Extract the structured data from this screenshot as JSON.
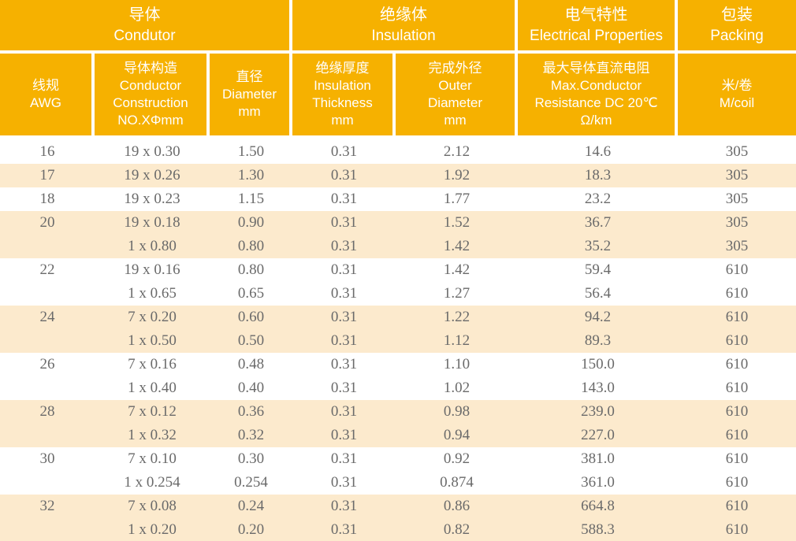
{
  "colors": {
    "header_bg": "#F6B100",
    "header_text": "#FFFFFF",
    "row_bg": "#FFFFFF",
    "row_alt_bg": "#FCEACD",
    "data_text": "#6A6A6A"
  },
  "table": {
    "header_groups": [
      {
        "zh": "导体",
        "en": "Condutor"
      },
      {
        "zh": "绝缘体",
        "en": "Insulation"
      },
      {
        "zh": "电气特性",
        "en": "Electrical Properties"
      },
      {
        "zh": "包装",
        "en": "Packing"
      }
    ],
    "columns": [
      {
        "lines": [
          "线规",
          "AWG"
        ]
      },
      {
        "lines": [
          "导体构造",
          "Conductor",
          "Construction",
          "NO.XΦmm"
        ]
      },
      {
        "lines": [
          "直径",
          "Diameter",
          "mm"
        ]
      },
      {
        "lines": [
          "绝缘厚度",
          "Insulation",
          "Thickness",
          "mm"
        ]
      },
      {
        "lines": [
          "完成外径",
          "Outer",
          "Diameter",
          "mm"
        ]
      },
      {
        "lines": [
          "最大导体直流电阻",
          "Max.Conductor",
          "Resistance DC 20℃",
          "Ω/km"
        ]
      },
      {
        "lines": [
          "米/卷",
          "M/coil"
        ]
      }
    ],
    "rows": [
      {
        "shaded": false,
        "cells": [
          "16",
          "19 x 0.30",
          "1.50",
          "0.31",
          "2.12",
          "14.6",
          "305"
        ]
      },
      {
        "shaded": true,
        "cells": [
          "17",
          "19 x 0.26",
          "1.30",
          "0.31",
          "1.92",
          "18.3",
          "305"
        ]
      },
      {
        "shaded": false,
        "cells": [
          "18",
          "19 x 0.23",
          "1.15",
          "0.31",
          "1.77",
          "23.2",
          "305"
        ]
      },
      {
        "shaded": true,
        "cells": [
          "20",
          "19 x 0.18",
          "0.90",
          "0.31",
          "1.52",
          "36.7",
          "305"
        ]
      },
      {
        "shaded": true,
        "cells": [
          "",
          "1 x 0.80",
          "0.80",
          "0.31",
          "1.42",
          "35.2",
          "305"
        ]
      },
      {
        "shaded": false,
        "cells": [
          "22",
          "19 x 0.16",
          "0.80",
          "0.31",
          "1.42",
          "59.4",
          "610"
        ]
      },
      {
        "shaded": false,
        "cells": [
          "",
          "1 x 0.65",
          "0.65",
          "0.31",
          "1.27",
          "56.4",
          "610"
        ]
      },
      {
        "shaded": true,
        "cells": [
          "24",
          "7 x 0.20",
          "0.60",
          "0.31",
          "1.22",
          "94.2",
          "610"
        ]
      },
      {
        "shaded": true,
        "cells": [
          "",
          "1 x 0.50",
          "0.50",
          "0.31",
          "1.12",
          "89.3",
          "610"
        ]
      },
      {
        "shaded": false,
        "cells": [
          "26",
          "7 x 0.16",
          "0.48",
          "0.31",
          "1.10",
          "150.0",
          "610"
        ]
      },
      {
        "shaded": false,
        "cells": [
          "",
          "1 x 0.40",
          "0.40",
          "0.31",
          "1.02",
          "143.0",
          "610"
        ]
      },
      {
        "shaded": true,
        "cells": [
          "28",
          "7 x 0.12",
          "0.36",
          "0.31",
          "0.98",
          "239.0",
          "610"
        ]
      },
      {
        "shaded": true,
        "cells": [
          "",
          "1 x 0.32",
          "0.32",
          "0.31",
          "0.94",
          "227.0",
          "610"
        ]
      },
      {
        "shaded": false,
        "cells": [
          "30",
          "7 x 0.10",
          "0.30",
          "0.31",
          "0.92",
          "381.0",
          "610"
        ]
      },
      {
        "shaded": false,
        "cells": [
          "",
          "1 x 0.254",
          "0.254",
          "0.31",
          "0.874",
          "361.0",
          "610"
        ]
      },
      {
        "shaded": true,
        "cells": [
          "32",
          "7 x 0.08",
          "0.24",
          "0.31",
          "0.86",
          "664.8",
          "610"
        ]
      },
      {
        "shaded": true,
        "cells": [
          "",
          "1 x 0.20",
          "0.20",
          "0.31",
          "0.82",
          "588.3",
          "610"
        ]
      }
    ]
  }
}
